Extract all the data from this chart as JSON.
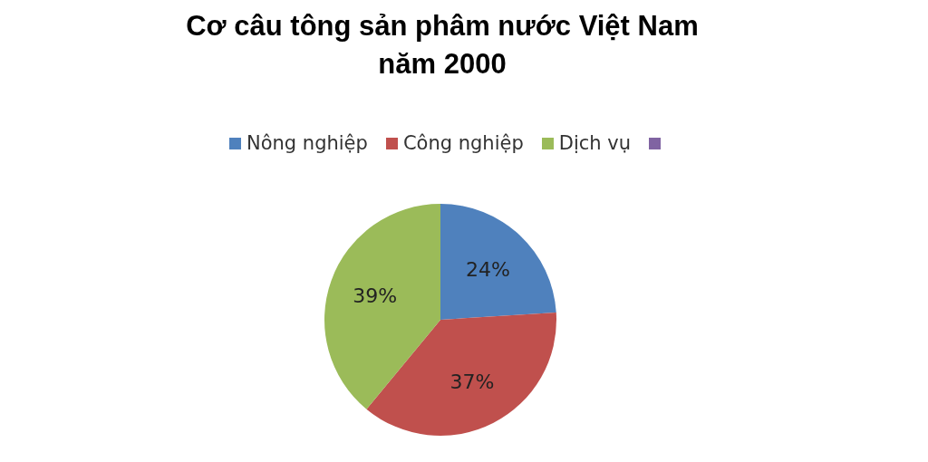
{
  "chart_data": {
    "type": "pie",
    "title": "Cơ câu tông sản phâm nước Việt Nam năm 2000",
    "categories": [
      "Nông nghiệp",
      "Công nghiệp",
      "Dịch vụ",
      null
    ],
    "values": [
      24,
      37,
      39,
      0
    ],
    "colors": [
      "#4f81bd",
      "#c0504d",
      "#9bbb59",
      "#8064a2"
    ],
    "value_labels": [
      "24%",
      "37%",
      "39%",
      null
    ],
    "legend": "top"
  }
}
